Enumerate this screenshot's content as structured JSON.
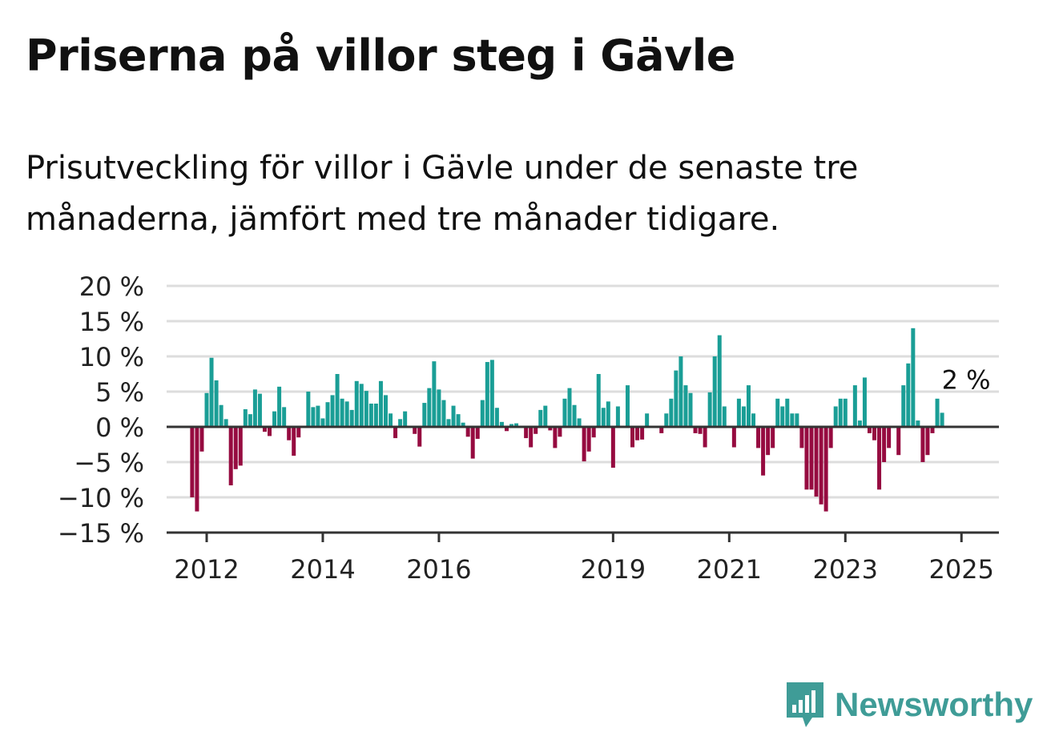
{
  "title": "Priserna på villor steg i Gävle",
  "subtitle": "Prisutveckling för villor i Gävle under de senaste tre månaderna, jämfört med tre månader tidigare.",
  "brand": {
    "name": "Newsworthy",
    "icon": "newsworthy-logo-icon",
    "color": "#3f9c97"
  },
  "colors": {
    "positive": "#1a9e96",
    "negative": "#960b40",
    "grid": "#dddddd",
    "axis": "#333333"
  },
  "chart_data": {
    "type": "bar",
    "x_start": "2011-10",
    "x_step": "month",
    "y_unit": "%",
    "ylim": [
      -15,
      20
    ],
    "yticks": [
      20,
      15,
      10,
      5,
      0,
      -5,
      -10,
      -15
    ],
    "ytick_labels": [
      "20 %",
      "15 %",
      "10 %",
      "5 %",
      "0 %",
      "−5 %",
      "−10 %",
      "−15 %"
    ],
    "xtick_labels": [
      "2012",
      "2014",
      "2016",
      "2019",
      "2021",
      "2023",
      "2025"
    ],
    "xtick_months": [
      "2012-01",
      "2014-01",
      "2016-01",
      "2019-01",
      "2021-01",
      "2023-01",
      "2025-01"
    ],
    "grid": true,
    "last_label": "2 %",
    "values": [
      -10,
      -12,
      -3.5,
      4.8,
      9.8,
      6.6,
      3.1,
      1.1,
      -8.3,
      -6.0,
      -5.5,
      2.5,
      1.8,
      5.3,
      4.7,
      -0.7,
      -1.3,
      2.2,
      5.7,
      2.8,
      -1.9,
      -4.1,
      -1.5,
      0,
      5.0,
      2.8,
      3.0,
      1.2,
      3.5,
      4.5,
      7.5,
      4.0,
      3.6,
      2.4,
      6.5,
      6.1,
      5.1,
      3.3,
      3.3,
      6.5,
      4.5,
      1.9,
      -1.6,
      1.1,
      2.2,
      0,
      -1.0,
      -2.8,
      3.4,
      5.5,
      9.3,
      5.3,
      3.8,
      1.1,
      3.0,
      1.8,
      0.6,
      -1.4,
      -4.5,
      -1.7,
      3.8,
      9.2,
      9.5,
      2.7,
      0.7,
      -0.6,
      0.4,
      0.5,
      0,
      -1.6,
      -2.9,
      -1.0,
      2.4,
      3.0,
      -0.5,
      -3.0,
      -1.4,
      4.0,
      5.5,
      3.1,
      1.2,
      -4.9,
      -3.5,
      -1.5,
      7.5,
      2.7,
      3.6,
      -5.8,
      2.9,
      0,
      5.9,
      -2.9,
      -1.9,
      -1.8,
      1.9,
      0,
      0,
      -0.9,
      1.9,
      4.0,
      8.0,
      10.0,
      5.9,
      4.8,
      -0.9,
      -1.0,
      -2.9,
      4.9,
      10.0,
      13.0,
      2.9,
      0,
      -2.9,
      4.0,
      2.9,
      5.9,
      1.9,
      -3.0,
      -6.9,
      -4.0,
      -3.0,
      4.0,
      2.9,
      4.0,
      1.9,
      1.9,
      -3.0,
      -8.9,
      -8.9,
      -9.9,
      -11.0,
      -12.0,
      -3.0,
      2.9,
      4.0,
      4.0,
      0,
      5.9,
      0.9,
      7.0,
      -0.9,
      -1.9,
      -8.9,
      -5.0,
      -3.0,
      0,
      -4.0,
      5.9,
      9.0,
      14.0,
      0.9,
      -5.0,
      -4.0,
      -0.9,
      4.0,
      2.0
    ]
  }
}
